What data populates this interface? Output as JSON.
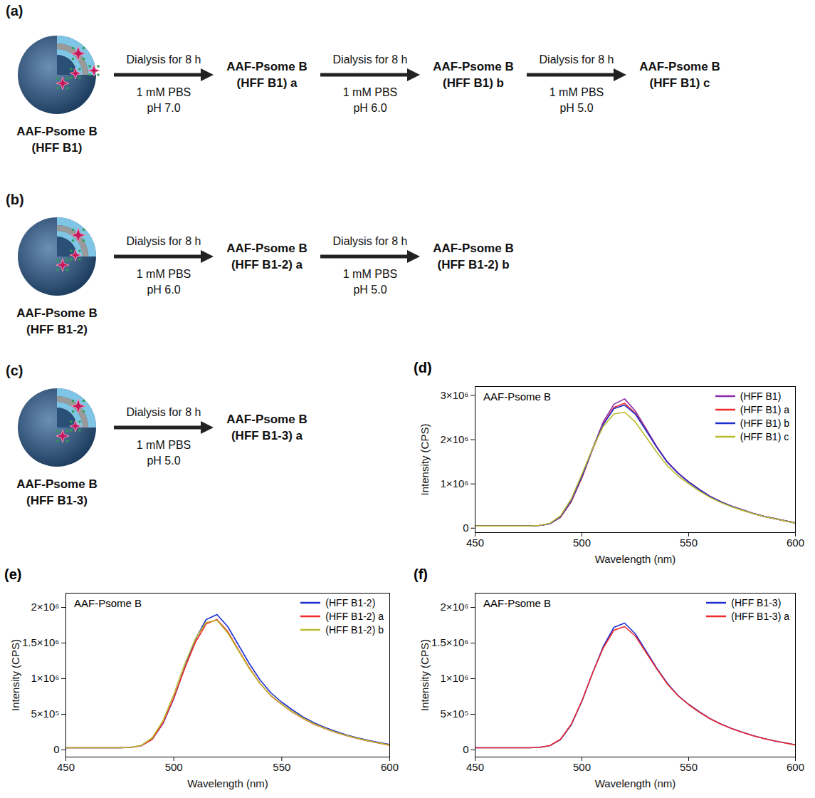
{
  "diagrams": [
    {
      "panel": "(a)",
      "start": [
        "AAF-Psome B",
        "(HFF B1)"
      ],
      "steps": [
        {
          "above": "Dialysis for 8 h",
          "below": [
            "1 mM PBS",
            "pH 7.0"
          ],
          "product": [
            "AAF-Psome B",
            "(HFF B1) a"
          ]
        },
        {
          "above": "Dialysis for 8 h",
          "below": [
            "1 mM PBS",
            "pH 6.0"
          ],
          "product": [
            "AAF-Psome B",
            "(HFF B1) b"
          ]
        },
        {
          "above": "Dialysis for 8 h",
          "below": [
            "1 mM PBS",
            "pH 5.0"
          ],
          "product": [
            "AAF-Psome B",
            "(HFF B1) c"
          ]
        }
      ]
    },
    {
      "panel": "(b)",
      "start": [
        "AAF-Psome B",
        "(HFF B1-2)"
      ],
      "steps": [
        {
          "above": "Dialysis for 8 h",
          "below": [
            "1 mM PBS",
            "pH 6.0"
          ],
          "product": [
            "AAF-Psome B",
            "(HFF B1-2) a"
          ]
        },
        {
          "above": "Dialysis for 8 h",
          "below": [
            "1 mM PBS",
            "pH 5.0"
          ],
          "product": [
            "AAF-Psome B",
            "(HFF B1-2) b"
          ]
        }
      ]
    },
    {
      "panel": "(c)",
      "start": [
        "AAF-Psome B",
        "(HFF B1-3)"
      ],
      "steps": [
        {
          "above": "Dialysis for 8 h",
          "below": [
            "1 mM PBS",
            "pH 5.0"
          ],
          "product": [
            "AAF-Psome B",
            "(HFF B1-3) a"
          ]
        }
      ]
    }
  ],
  "chart_data": [
    {
      "type": "line",
      "panel": "(d)",
      "annotation": "AAF-Psome B",
      "x_label": "Wavelength (nm)",
      "y_label": "Intensity (CPS)",
      "x": [
        450,
        455,
        460,
        465,
        470,
        475,
        480,
        485,
        490,
        495,
        500,
        505,
        510,
        515,
        520,
        525,
        530,
        535,
        540,
        545,
        550,
        555,
        560,
        565,
        570,
        575,
        580,
        585,
        590,
        595,
        600
      ],
      "xlim": [
        450,
        600
      ],
      "xticks": [
        450,
        500,
        550,
        600
      ],
      "ylim": [
        -100000,
        3200000
      ],
      "yticks": [
        0,
        {
          "value": 1000000,
          "label": "1×10⁶"
        },
        {
          "value": 2000000,
          "label": "2×10⁶"
        },
        {
          "value": 3000000,
          "label": "3×10⁶"
        }
      ],
      "legend": "upper right",
      "series": [
        {
          "name": "(HFF B1)",
          "color": "#8a2aa8",
          "values": [
            50000,
            50000,
            50000,
            50000,
            50000,
            50000,
            60000,
            100000,
            250000,
            600000,
            1150000,
            1800000,
            2400000,
            2800000,
            2920000,
            2650000,
            2250000,
            1850000,
            1500000,
            1250000,
            1050000,
            880000,
            720000,
            600000,
            500000,
            420000,
            340000,
            270000,
            220000,
            170000,
            120000
          ]
        },
        {
          "name": "(HFF B1) a",
          "color": "#f0282a",
          "values": [
            50000,
            50000,
            50000,
            50000,
            50000,
            50000,
            60000,
            100000,
            250000,
            600000,
            1140000,
            1780000,
            2350000,
            2730000,
            2820000,
            2600000,
            2220000,
            1830000,
            1490000,
            1240000,
            1040000,
            870000,
            715000,
            595000,
            495000,
            415000,
            335000,
            268000,
            218000,
            168000,
            118000
          ]
        },
        {
          "name": "(HFF B1) b",
          "color": "#1d2fd0",
          "values": [
            50000,
            50000,
            50000,
            50000,
            50000,
            50000,
            60000,
            100000,
            260000,
            620000,
            1170000,
            1790000,
            2340000,
            2700000,
            2780000,
            2580000,
            2210000,
            1830000,
            1490000,
            1240000,
            1040000,
            870000,
            715000,
            595000,
            495000,
            415000,
            335000,
            268000,
            218000,
            168000,
            118000
          ]
        },
        {
          "name": "(HFF B1) c",
          "color": "#b9bd2c",
          "values": [
            50000,
            50000,
            50000,
            50000,
            50000,
            50000,
            60000,
            110000,
            280000,
            660000,
            1220000,
            1800000,
            2300000,
            2580000,
            2620000,
            2400000,
            2060000,
            1720000,
            1410000,
            1180000,
            1000000,
            840000,
            695000,
            580000,
            485000,
            405000,
            330000,
            265000,
            215000,
            165000,
            115000
          ]
        }
      ]
    },
    {
      "type": "line",
      "panel": "(e)",
      "annotation": "AAF-Psome B",
      "x_label": "Wavelength (nm)",
      "y_label": "Intensity (CPS)",
      "x": [
        450,
        455,
        460,
        465,
        470,
        475,
        480,
        485,
        490,
        495,
        500,
        505,
        510,
        515,
        520,
        525,
        530,
        535,
        540,
        545,
        550,
        555,
        560,
        565,
        570,
        575,
        580,
        585,
        590,
        595,
        600
      ],
      "xlim": [
        450,
        600
      ],
      "xticks": [
        450,
        500,
        550,
        600
      ],
      "ylim": [
        -100000,
        2200000
      ],
      "yticks": [
        0,
        {
          "value": 500000,
          "label": "5×10⁵"
        },
        {
          "value": 1000000,
          "label": "1×10⁶"
        },
        {
          "value": 1500000,
          "label": "1.5×10⁶"
        },
        {
          "value": 2000000,
          "label": "2×10⁶"
        }
      ],
      "legend": "upper right",
      "series": [
        {
          "name": "(HFF B1-2)",
          "color": "#1d2fd0",
          "values": [
            30000,
            30000,
            30000,
            30000,
            30000,
            30000,
            35000,
            60000,
            150000,
            370000,
            720000,
            1150000,
            1550000,
            1830000,
            1900000,
            1730000,
            1470000,
            1210000,
            980000,
            800000,
            670000,
            560000,
            460000,
            380000,
            315000,
            260000,
            210000,
            170000,
            135000,
            105000,
            75000
          ]
        },
        {
          "name": "(HFF B1-2) a",
          "color": "#f0282a",
          "values": [
            30000,
            30000,
            30000,
            30000,
            30000,
            30000,
            35000,
            60000,
            150000,
            380000,
            730000,
            1140000,
            1510000,
            1770000,
            1830000,
            1660000,
            1400000,
            1150000,
            930000,
            760000,
            640000,
            530000,
            440000,
            360000,
            300000,
            245000,
            200000,
            160000,
            125000,
            95000,
            65000
          ]
        },
        {
          "name": "(HFF B1-2) b",
          "color": "#b9bd2c",
          "values": [
            30000,
            30000,
            30000,
            30000,
            30000,
            30000,
            35000,
            65000,
            170000,
            410000,
            780000,
            1200000,
            1560000,
            1790000,
            1820000,
            1640000,
            1390000,
            1140000,
            930000,
            765000,
            640000,
            535000,
            445000,
            365000,
            302000,
            248000,
            202000,
            162000,
            128000,
            98000,
            68000
          ]
        }
      ]
    },
    {
      "type": "line",
      "panel": "(f)",
      "annotation": "AAF-Psome B",
      "x_label": "Wavelength (nm)",
      "y_label": "Intensity (CPS)",
      "x": [
        450,
        455,
        460,
        465,
        470,
        475,
        480,
        485,
        490,
        495,
        500,
        505,
        510,
        515,
        520,
        525,
        530,
        535,
        540,
        545,
        550,
        555,
        560,
        565,
        570,
        575,
        580,
        585,
        590,
        595,
        600
      ],
      "xlim": [
        450,
        600
      ],
      "xticks": [
        450,
        500,
        550,
        600
      ],
      "ylim": [
        -100000,
        2200000
      ],
      "yticks": [
        0,
        {
          "value": 500000,
          "label": "5×10⁵"
        },
        {
          "value": 1000000,
          "label": "1×10⁶"
        },
        {
          "value": 1500000,
          "label": "1.5×10⁶"
        },
        {
          "value": 2000000,
          "label": "2×10⁶"
        }
      ],
      "legend": "upper right",
      "series": [
        {
          "name": "(HFF B1-3)",
          "color": "#1d2fd0",
          "values": [
            30000,
            30000,
            30000,
            30000,
            30000,
            30000,
            35000,
            60000,
            145000,
            350000,
            680000,
            1080000,
            1450000,
            1720000,
            1780000,
            1630000,
            1390000,
            1150000,
            935000,
            765000,
            640000,
            535000,
            440000,
            365000,
            302000,
            250000,
            202000,
            162000,
            128000,
            100000,
            72000
          ]
        },
        {
          "name": "(HFF B1-3) a",
          "color": "#f0282a",
          "values": [
            30000,
            30000,
            30000,
            30000,
            30000,
            30000,
            35000,
            60000,
            150000,
            360000,
            690000,
            1080000,
            1430000,
            1680000,
            1730000,
            1600000,
            1370000,
            1140000,
            925000,
            760000,
            635000,
            530000,
            438000,
            362000,
            300000,
            248000,
            200000,
            160000,
            127000,
            98000,
            70000
          ]
        }
      ]
    }
  ]
}
